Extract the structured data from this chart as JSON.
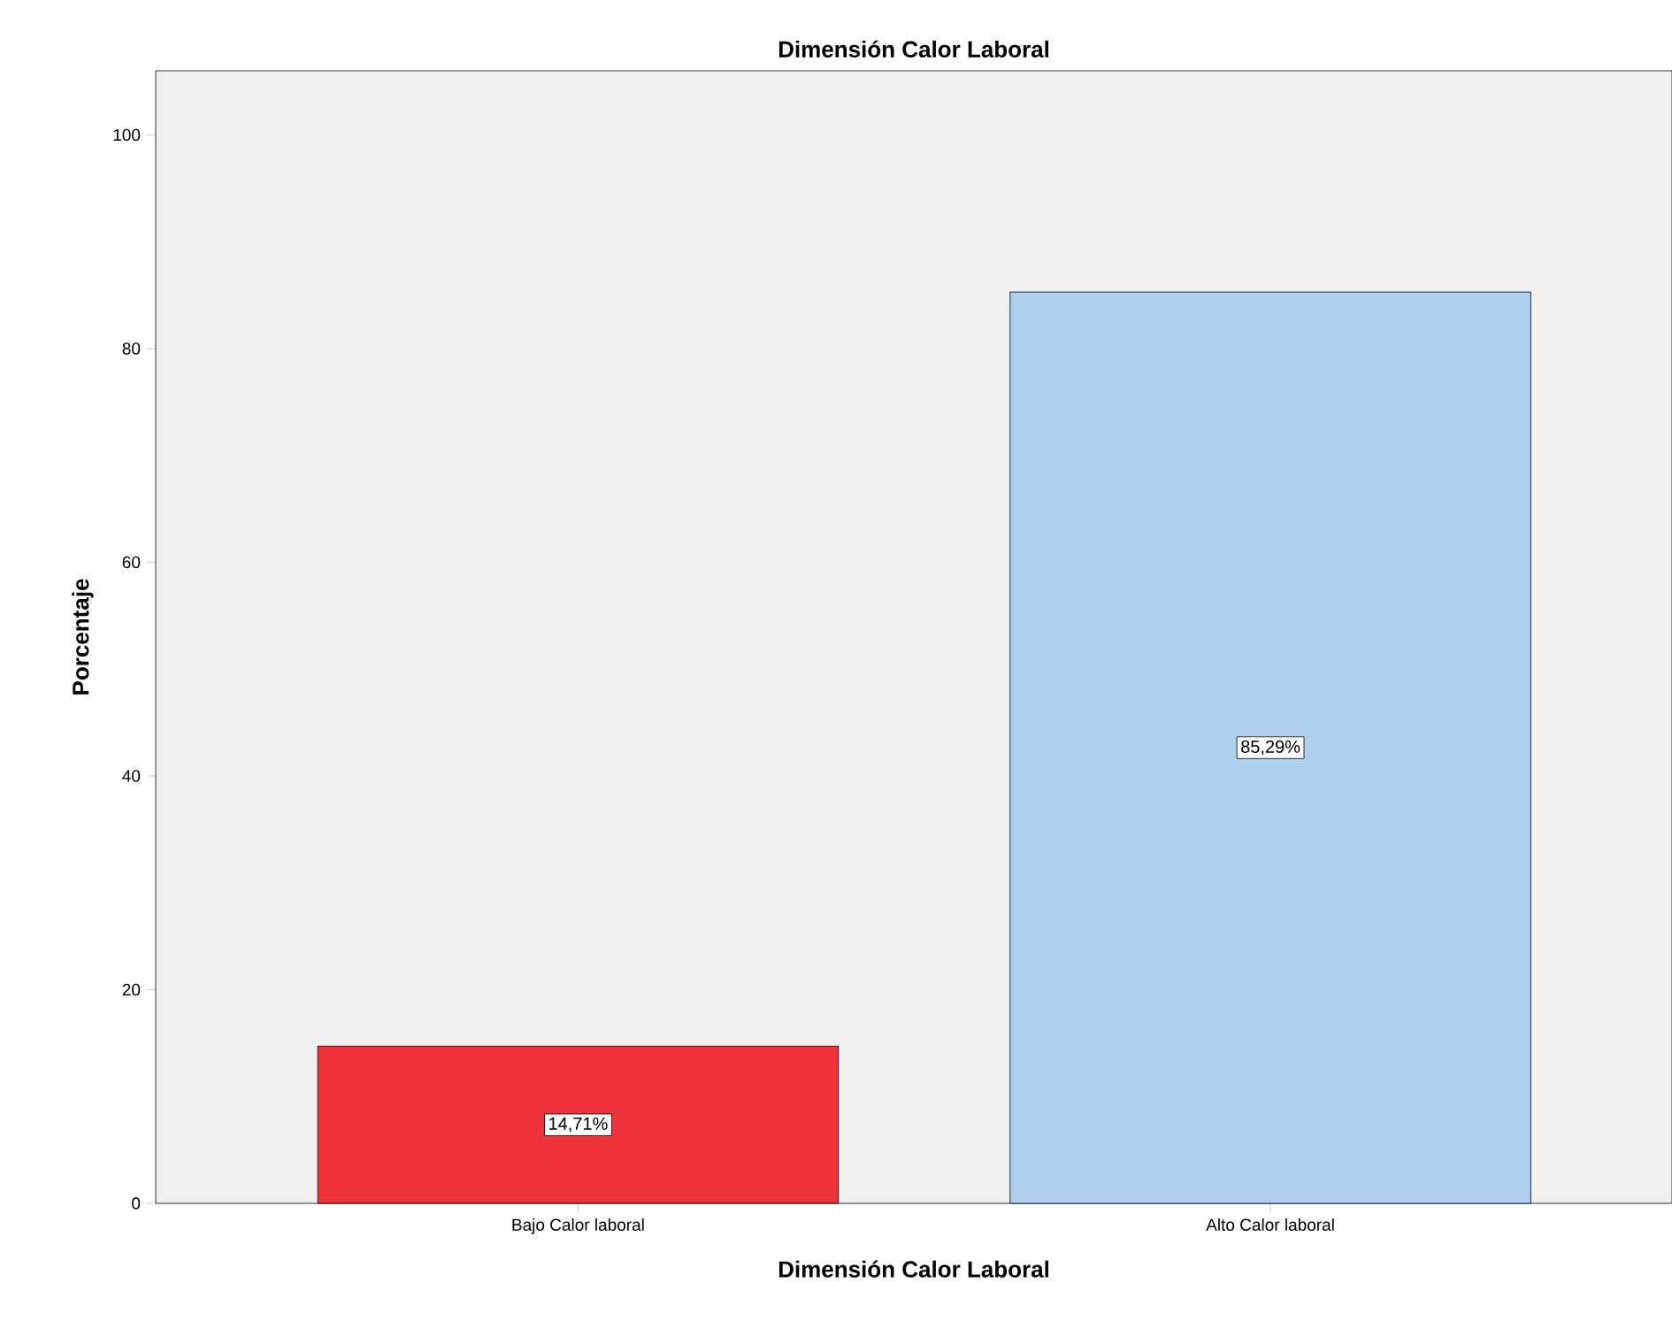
{
  "chart_data": {
    "type": "bar",
    "title": "Dimensión Calor Laboral",
    "xlabel": "Dimensión Calor Laboral",
    "ylabel": "Porcentaje",
    "categories": [
      "Bajo Calor laboral",
      "Alto Calor laboral"
    ],
    "values": [
      14.71,
      85.29
    ],
    "colors": [
      "#ef333a",
      "#aecfee"
    ],
    "value_labels": [
      "14,71%",
      "85,29%"
    ],
    "ylim": [
      0,
      106
    ],
    "yticks": [
      0,
      20,
      40,
      60,
      80,
      100
    ]
  }
}
